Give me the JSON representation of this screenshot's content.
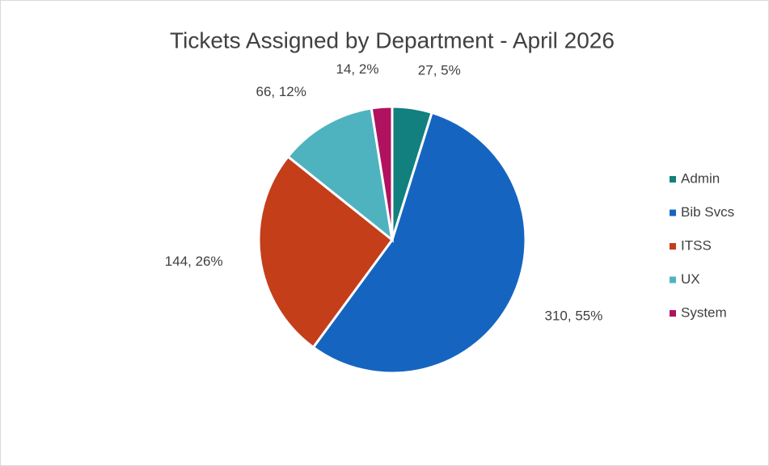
{
  "chart_data": {
    "type": "pie",
    "title": "Tickets Assigned by Department  - April 2026",
    "categories": [
      "Admin",
      "Bib Svcs",
      "ITSS",
      "UX",
      "System"
    ],
    "values": [
      27,
      310,
      144,
      66,
      14
    ],
    "value_labels": [
      "27, 5%",
      "310, 55%",
      "144, 26%",
      "66, 12%",
      "14, 2%"
    ],
    "colors": [
      "#12807e",
      "#1565c0",
      "#c43e1a",
      "#4fb3bf",
      "#b0125f"
    ],
    "legend": "right"
  }
}
